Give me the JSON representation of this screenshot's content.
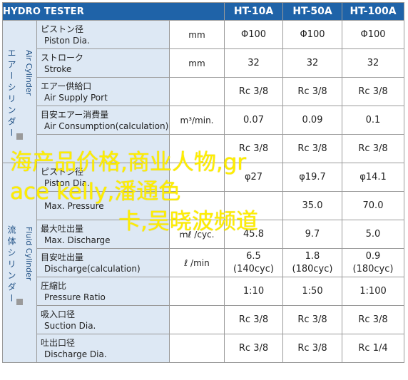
{
  "header": {
    "title": "HYDRO TESTER",
    "models": [
      "HT-10A",
      "HT-50A",
      "HT-100A"
    ]
  },
  "groups": {
    "air": {
      "jp": "エアーシリンダー",
      "en": "Air Cylinder"
    },
    "fluid": {
      "jp": "流体シリンダー",
      "en": "Fluid Cylinder"
    }
  },
  "rows": [
    {
      "jp": "ピストン径",
      "en": "Piston Dia.",
      "unit": "mm",
      "values": [
        "Φ100",
        "Φ100",
        "Φ100"
      ]
    },
    {
      "jp": "ストローク",
      "en": "Stroke",
      "unit": "mm",
      "values": [
        "32",
        "32",
        "32"
      ]
    },
    {
      "jp": "エアー供給口",
      "en": "Air Supply Port",
      "unit": "",
      "values": [
        "Rc 3/8",
        "Rc 3/8",
        "Rc 3/8"
      ]
    },
    {
      "jp": "目安エアー消費量",
      "en": "Air Consumption(calculation)",
      "unit": "m³/min.",
      "values": [
        "0.07",
        "0.09",
        "0.1"
      ]
    },
    {
      "jp": "",
      "en": "",
      "unit": "",
      "values": [
        "Rc 3/8",
        "Rc 3/8",
        "Rc 3/8"
      ]
    },
    {
      "jp": "ピストン径",
      "en": "Piston Dia.",
      "unit": "",
      "values": [
        "φ27",
        "φ19.7",
        "φ14.1"
      ]
    },
    {
      "jp": "",
      "en": "Max. Pressure",
      "unit": "",
      "values": [
        "",
        "35.0",
        "70.0"
      ]
    },
    {
      "jp": "最大吐出量",
      "en": "Max. Discharge",
      "unit": "ｍℓ /cyc.",
      "values": [
        "45.8",
        "9.7",
        "5.0"
      ]
    },
    {
      "jp": "目安吐出量",
      "en": "Discharge(calculation)",
      "unit": "ℓ /min",
      "values": [
        "6.5\n(140cyc)",
        "1.8\n(180cyc)",
        "0.9\n(180cyc)"
      ]
    },
    {
      "jp": "圧縮比",
      "en": "Pressure Ratio",
      "unit": "",
      "values": [
        "1:10",
        "1:50",
        "1:100"
      ]
    },
    {
      "jp": "吸入口径",
      "en": "Suction Dia.",
      "unit": "",
      "values": [
        "Rc 3/8",
        "Rc 3/8",
        "Rc 3/8"
      ]
    },
    {
      "jp": "吐出口径",
      "en": "Discharge Dia.",
      "unit": "",
      "values": [
        "Rc 3/8",
        "Rc 3/8",
        "Rc 1/4"
      ]
    }
  ],
  "watermark": {
    "line1": "海产品价格,商业人物,gr",
    "line2": "ace kelly,潘通色",
    "line3": "卡,吴晓波频道"
  }
}
